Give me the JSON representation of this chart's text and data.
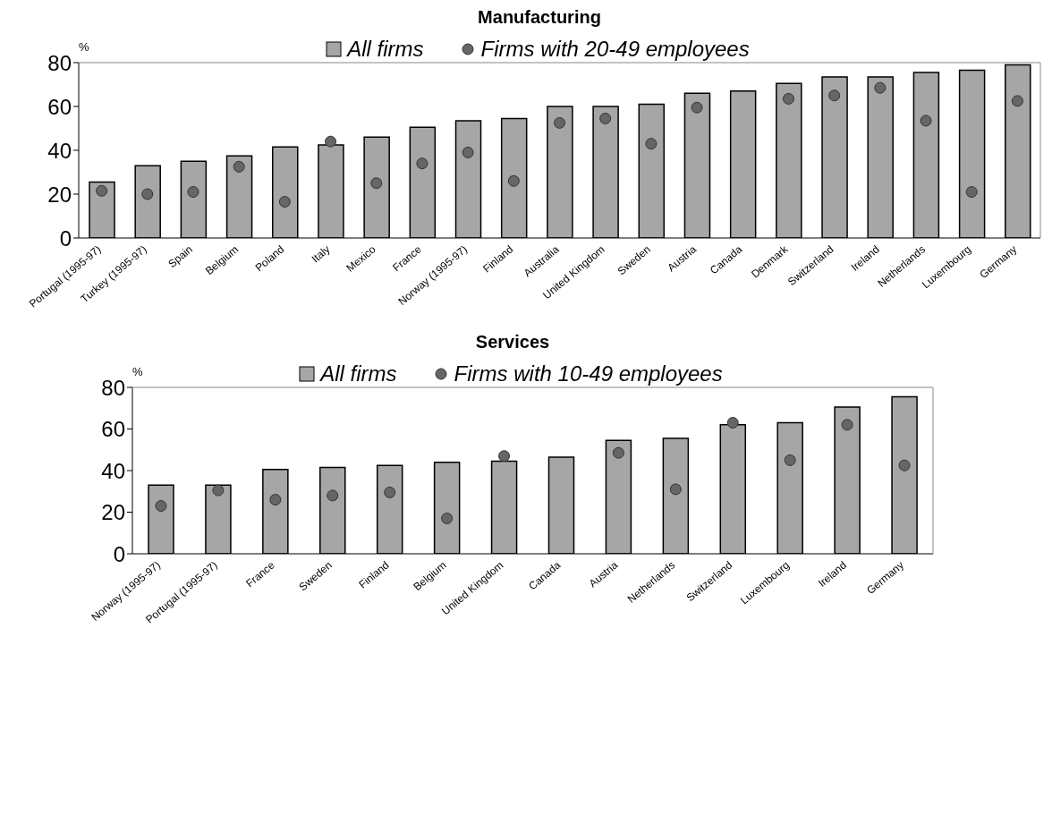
{
  "chart_data": [
    {
      "type": "bar",
      "title": "Manufacturing",
      "ylabel": "%",
      "categories": [
        "Portugal (1995-97)",
        "Turkey (1995-97)",
        "Spain",
        "Belgium",
        "Poland",
        "Italy",
        "Mexico",
        "France",
        "Norway (1995-97)",
        "Finland",
        "Australia",
        "United Kingdom",
        "Sweden",
        "Austria",
        "Canada",
        "Denmark",
        "Switzerland",
        "Ireland",
        "Netherlands",
        "Luxembourg",
        "Germany"
      ],
      "series": [
        {
          "name": "All firms",
          "color": "#a6a6a6",
          "values": [
            25.5,
            33,
            35,
            37.5,
            41.5,
            42.5,
            46,
            50.5,
            53.5,
            54.5,
            60,
            60,
            61,
            66,
            67,
            70.5,
            73.5,
            73.5,
            75.5,
            76.5,
            79
          ]
        },
        {
          "name": "Firms with 20-49 employees",
          "type": "scatter",
          "marker": "circle",
          "color": "#666666",
          "values": [
            21.5,
            20,
            21,
            32.5,
            16.5,
            44,
            25,
            34,
            39,
            26,
            52.5,
            54.5,
            43,
            59.5,
            null,
            63.5,
            65,
            68.5,
            53.5,
            21,
            62.5
          ]
        }
      ],
      "ylim": [
        0,
        80
      ],
      "yticks": [
        0,
        20,
        40,
        60,
        80
      ],
      "legend": "top"
    },
    {
      "type": "bar",
      "title": "Services",
      "ylabel": "%",
      "categories": [
        "Norway (1995-97)",
        "Portugal (1995-97)",
        "France",
        "Sweden",
        "Finland",
        "Belgium",
        "United Kingdom",
        "Canada",
        "Austria",
        "Netherlands",
        "Switzerland",
        "Luxembourg",
        "Ireland",
        "Germany"
      ],
      "series": [
        {
          "name": "All firms",
          "color": "#a6a6a6",
          "values": [
            33,
            33,
            40.5,
            41.5,
            42.5,
            44,
            44.5,
            46.5,
            54.5,
            55.5,
            62,
            63,
            70.5,
            75.5
          ]
        },
        {
          "name": "Firms with 10-49 employees",
          "type": "scatter",
          "marker": "circle",
          "color": "#666666",
          "values": [
            23,
            30.5,
            26,
            28,
            29.5,
            17,
            47,
            null,
            48.5,
            31,
            63,
            45,
            62,
            42.5
          ]
        }
      ],
      "ylim": [
        0,
        80
      ],
      "yticks": [
        0,
        20,
        40,
        60,
        80
      ],
      "legend": "top"
    }
  ]
}
